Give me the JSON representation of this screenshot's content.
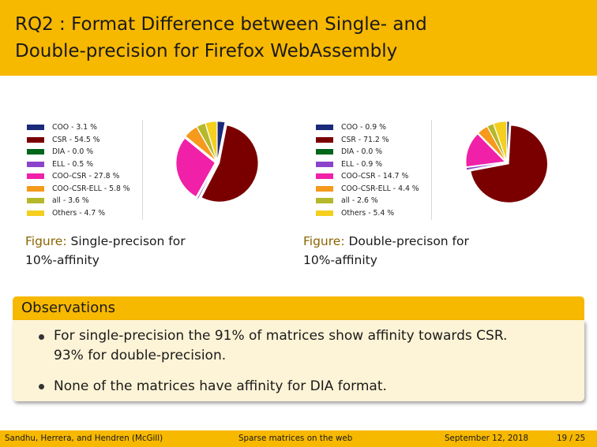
{
  "slide": {
    "title_line1": "RQ2 : Format Difference between Single- and",
    "title_line2": "Double-precision for Firefox WebAssembly"
  },
  "figures": [
    {
      "legend": [
        "COO - 3.1 %",
        "CSR - 54.5 %",
        "DIA - 0.0 %",
        "ELL - 0.5 %",
        "COO-CSR - 27.8 %",
        "COO-CSR-ELL - 5.8 %",
        "all - 3.6 %",
        "Others - 4.7 %"
      ],
      "caption_prefix": "Figure:",
      "caption_text": " Single-precison for",
      "caption_line2": "10%-affinity"
    },
    {
      "legend": [
        "COO - 0.9 %",
        "CSR - 71.2 %",
        "DIA - 0.0 %",
        "ELL - 0.9 %",
        "COO-CSR - 14.7 %",
        "COO-CSR-ELL - 4.4 %",
        "all - 2.6 %",
        "Others - 5.4 %"
      ],
      "caption_prefix": "Figure:",
      "caption_text": " Double-precison for",
      "caption_line2": "10%-affinity"
    }
  ],
  "chart_data": [
    {
      "type": "pie",
      "categories": [
        "COO",
        "CSR",
        "DIA",
        "ELL",
        "COO-CSR",
        "COO-CSR-ELL",
        "all",
        "Others"
      ],
      "values": [
        3.1,
        54.5,
        0.0,
        0.5,
        27.8,
        5.8,
        3.6,
        4.7
      ],
      "colors": [
        "#1a2a7a",
        "#7a0000",
        "#00661a",
        "#8a44cc",
        "#f020a8",
        "#f59a1c",
        "#b5b82a",
        "#f4cf1e"
      ]
    },
    {
      "type": "pie",
      "categories": [
        "COO",
        "CSR",
        "DIA",
        "ELL",
        "COO-CSR",
        "COO-CSR-ELL",
        "all",
        "Others"
      ],
      "values": [
        0.9,
        71.2,
        0.0,
        0.9,
        14.7,
        4.4,
        2.6,
        5.4
      ],
      "colors": [
        "#1a2a7a",
        "#7a0000",
        "#00661a",
        "#8a44cc",
        "#f020a8",
        "#f59a1c",
        "#b5b82a",
        "#f4cf1e"
      ]
    }
  ],
  "observations": {
    "title": "Observations",
    "bullet1_line1": "For single-precision the  91% of matrices show affinity towards CSR.",
    "bullet1_line2": "93% for double-precision.",
    "bullet2": "None of the matrices have affinity for DIA format."
  },
  "footer": {
    "authors": "Sandhu, Herrera, and Hendren  (McGill)",
    "talk": "Sparse matrices on the web",
    "date": "September 12, 2018",
    "page": "19 / 25"
  }
}
